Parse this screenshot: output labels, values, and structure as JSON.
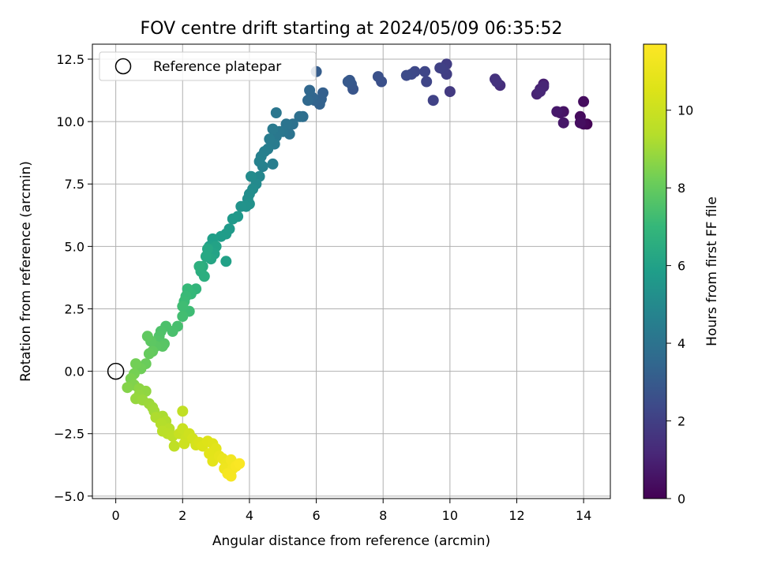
{
  "chart_data": {
    "type": "scatter",
    "title": "FOV centre drift starting at 2024/05/09 06:35:52",
    "xlabel": "Angular distance from reference (arcmin)",
    "ylabel": "Rotation from reference (arcmin)",
    "xlim": [
      -0.7,
      14.8
    ],
    "ylim": [
      -5.1,
      13.1
    ],
    "xticks": [
      0,
      2,
      4,
      6,
      8,
      10,
      12,
      14
    ],
    "yticks": [
      -5.0,
      -2.5,
      0.0,
      2.5,
      5.0,
      7.5,
      10.0,
      12.5
    ],
    "grid": true,
    "legend": {
      "placement": "upper left",
      "entries": [
        "Reference platepar"
      ]
    },
    "reference_point": {
      "x": 0,
      "y": 0
    },
    "colorbar": {
      "label": "Hours from first FF file",
      "range": [
        0,
        11.7
      ],
      "ticks": [
        0,
        2,
        4,
        6,
        8,
        10
      ],
      "colormap": "viridis"
    },
    "points_x_y_hours": [
      [
        14.1,
        9.9,
        0.1
      ],
      [
        14.0,
        9.9,
        0.2
      ],
      [
        13.9,
        10.2,
        0.3
      ],
      [
        14.0,
        10.8,
        0.35
      ],
      [
        13.9,
        9.95,
        0.4
      ],
      [
        13.4,
        10.4,
        0.5
      ],
      [
        13.3,
        10.35,
        0.6
      ],
      [
        13.4,
        9.95,
        0.65
      ],
      [
        13.2,
        10.4,
        0.7
      ],
      [
        12.8,
        11.5,
        0.9
      ],
      [
        12.7,
        11.3,
        1.0
      ],
      [
        12.6,
        11.1,
        1.05
      ],
      [
        12.8,
        11.4,
        1.1
      ],
      [
        12.7,
        11.2,
        1.15
      ],
      [
        11.5,
        11.45,
        1.4
      ],
      [
        11.35,
        11.7,
        1.5
      ],
      [
        11.4,
        11.6,
        1.55
      ],
      [
        10.0,
        11.2,
        1.8
      ],
      [
        9.9,
        12.3,
        1.9
      ],
      [
        9.9,
        11.9,
        1.95
      ],
      [
        9.8,
        12.1,
        2.0
      ],
      [
        9.7,
        12.15,
        2.05
      ],
      [
        9.5,
        10.85,
        2.1
      ],
      [
        9.3,
        11.6,
        2.2
      ],
      [
        9.25,
        12.0,
        2.25
      ],
      [
        8.95,
        12.0,
        2.3
      ],
      [
        8.85,
        11.9,
        2.35
      ],
      [
        8.7,
        11.85,
        2.4
      ],
      [
        7.95,
        11.6,
        2.6
      ],
      [
        7.85,
        11.8,
        2.65
      ],
      [
        7.1,
        11.3,
        2.8
      ],
      [
        7.05,
        11.5,
        2.85
      ],
      [
        7.0,
        11.65,
        2.9
      ],
      [
        6.95,
        11.6,
        2.95
      ],
      [
        6.2,
        11.15,
        3.2
      ],
      [
        6.0,
        12.0,
        3.1
      ],
      [
        6.15,
        10.9,
        3.25
      ],
      [
        6.1,
        10.7,
        3.3
      ],
      [
        5.95,
        10.85,
        3.35
      ],
      [
        5.9,
        10.95,
        3.4
      ],
      [
        5.85,
        11.0,
        3.45
      ],
      [
        5.8,
        11.25,
        3.5
      ],
      [
        5.75,
        10.85,
        3.55
      ],
      [
        5.6,
        10.2,
        3.8
      ],
      [
        5.5,
        10.2,
        3.85
      ],
      [
        5.3,
        9.9,
        3.9
      ],
      [
        5.2,
        9.5,
        4.0
      ],
      [
        5.1,
        9.9,
        4.05
      ],
      [
        5.0,
        9.6,
        4.1
      ],
      [
        4.8,
        10.35,
        4.15
      ],
      [
        4.9,
        9.6,
        4.2
      ],
      [
        4.8,
        9.4,
        4.25
      ],
      [
        4.7,
        9.7,
        4.3
      ],
      [
        4.75,
        9.1,
        4.35
      ],
      [
        4.6,
        9.3,
        4.4
      ],
      [
        4.55,
        8.9,
        4.45
      ],
      [
        4.7,
        8.3,
        4.5
      ],
      [
        4.45,
        8.8,
        4.55
      ],
      [
        4.35,
        8.6,
        4.6
      ],
      [
        4.4,
        8.2,
        4.65
      ],
      [
        4.3,
        8.4,
        4.7
      ],
      [
        4.3,
        7.8,
        4.9
      ],
      [
        4.2,
        7.5,
        5.0
      ],
      [
        4.05,
        7.8,
        5.05
      ],
      [
        4.1,
        7.3,
        5.1
      ],
      [
        4.0,
        7.1,
        5.15
      ],
      [
        3.95,
        6.9,
        5.2
      ],
      [
        4.0,
        6.7,
        5.3
      ],
      [
        3.9,
        6.6,
        5.35
      ],
      [
        3.75,
        6.6,
        5.4
      ],
      [
        3.65,
        6.2,
        5.6
      ],
      [
        3.5,
        6.1,
        5.65
      ],
      [
        3.4,
        5.7,
        5.7
      ],
      [
        3.3,
        5.5,
        5.75
      ],
      [
        3.15,
        5.4,
        5.8
      ],
      [
        2.9,
        5.3,
        5.9
      ],
      [
        2.8,
        5.0,
        5.95
      ],
      [
        3.3,
        4.4,
        6.0
      ],
      [
        3.0,
        5.0,
        6.05
      ],
      [
        2.95,
        4.7,
        6.1
      ],
      [
        2.85,
        4.5,
        6.2
      ],
      [
        2.75,
        4.9,
        6.25
      ],
      [
        2.7,
        4.6,
        6.3
      ],
      [
        2.6,
        4.2,
        6.5
      ],
      [
        2.55,
        4.0,
        6.55
      ],
      [
        2.65,
        3.8,
        6.6
      ],
      [
        2.5,
        4.2,
        6.65
      ],
      [
        2.4,
        3.3,
        6.9
      ],
      [
        2.25,
        3.1,
        7.0
      ],
      [
        2.15,
        3.3,
        7.05
      ],
      [
        2.1,
        3.0,
        7.1
      ],
      [
        2.05,
        2.8,
        7.15
      ],
      [
        2.2,
        2.4,
        7.2
      ],
      [
        2.0,
        2.6,
        7.25
      ],
      [
        2.0,
        2.2,
        7.3
      ],
      [
        1.85,
        1.8,
        7.4
      ],
      [
        1.7,
        1.6,
        7.45
      ],
      [
        1.5,
        1.8,
        7.5
      ],
      [
        1.35,
        1.6,
        7.55
      ],
      [
        1.3,
        1.4,
        7.6
      ],
      [
        1.25,
        1.2,
        7.65
      ],
      [
        1.45,
        1.1,
        7.7
      ],
      [
        1.4,
        1.0,
        7.75
      ],
      [
        1.2,
        1.0,
        7.8
      ],
      [
        1.05,
        1.2,
        7.85
      ],
      [
        0.95,
        1.4,
        7.9
      ],
      [
        1.1,
        0.8,
        7.95
      ],
      [
        1.0,
        0.7,
        8.0
      ],
      [
        0.9,
        0.3,
        8.1
      ],
      [
        0.75,
        0.1,
        8.2
      ],
      [
        0.6,
        0.3,
        8.25
      ],
      [
        0.55,
        -0.1,
        8.3
      ],
      [
        0.45,
        -0.3,
        8.4
      ],
      [
        0.55,
        -0.55,
        8.5
      ],
      [
        0.35,
        -0.65,
        8.55
      ],
      [
        0.7,
        -0.7,
        8.7
      ],
      [
        0.9,
        -0.8,
        8.75
      ],
      [
        0.7,
        -0.95,
        8.8
      ],
      [
        0.6,
        -1.1,
        8.85
      ],
      [
        0.8,
        -1.15,
        8.9
      ],
      [
        1.0,
        -1.3,
        8.95
      ],
      [
        1.1,
        -1.45,
        9.0
      ],
      [
        1.15,
        -1.6,
        9.05
      ],
      [
        1.4,
        -1.8,
        9.2
      ],
      [
        1.2,
        -1.85,
        9.25
      ],
      [
        1.5,
        -2.0,
        9.3
      ],
      [
        1.35,
        -2.1,
        9.35
      ],
      [
        1.6,
        -2.3,
        9.45
      ],
      [
        1.4,
        -2.4,
        9.5
      ],
      [
        1.55,
        -2.5,
        9.55
      ],
      [
        1.7,
        -2.6,
        9.6
      ],
      [
        1.75,
        -3.0,
        9.65
      ],
      [
        2.0,
        -1.6,
        9.7
      ],
      [
        1.9,
        -2.5,
        9.9
      ],
      [
        2.0,
        -2.3,
        9.95
      ],
      [
        2.1,
        -2.7,
        10.0
      ],
      [
        2.05,
        -2.9,
        10.05
      ],
      [
        2.2,
        -2.5,
        10.1
      ],
      [
        2.3,
        -2.7,
        10.2
      ],
      [
        2.4,
        -2.95,
        10.3
      ],
      [
        2.5,
        -2.85,
        10.4
      ],
      [
        2.6,
        -3.0,
        10.5
      ],
      [
        2.75,
        -2.8,
        10.55
      ],
      [
        2.9,
        -2.9,
        10.6
      ],
      [
        3.0,
        -3.1,
        10.7
      ],
      [
        2.8,
        -3.3,
        10.75
      ],
      [
        2.9,
        -3.6,
        10.8
      ],
      [
        3.1,
        -3.4,
        10.9
      ],
      [
        3.2,
        -3.5,
        11.0
      ],
      [
        3.3,
        -3.7,
        11.1
      ],
      [
        3.25,
        -3.9,
        11.2
      ],
      [
        3.45,
        -3.55,
        11.3
      ],
      [
        3.5,
        -3.9,
        11.35
      ],
      [
        3.35,
        -4.1,
        11.4
      ],
      [
        3.45,
        -4.2,
        11.45
      ],
      [
        3.6,
        -3.8,
        11.5
      ],
      [
        3.7,
        -3.7,
        11.6
      ]
    ]
  }
}
